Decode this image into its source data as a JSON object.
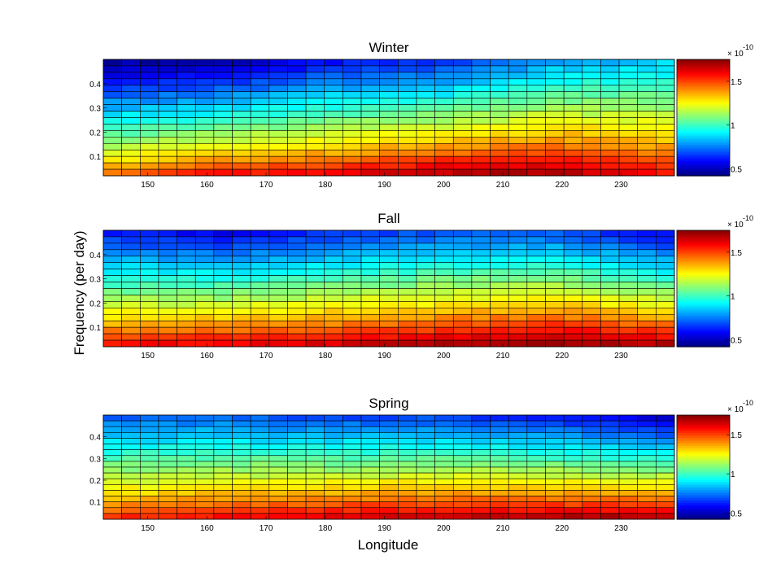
{
  "chart_data": [
    {
      "type": "heatmap",
      "title": "Winter",
      "x_ticks": [
        150,
        160,
        170,
        180,
        190,
        200,
        210,
        220,
        230
      ],
      "y_ticks": [
        0.1,
        0.2,
        0.3,
        0.4
      ],
      "xlim": [
        142.5,
        239
      ],
      "ylim": [
        0.02,
        0.5
      ],
      "n_cols": 31,
      "n_rows": 18,
      "colorbar": {
        "ticks": [
          0.5,
          1,
          1.5
        ],
        "multiplier": "× 10",
        "exponent": "-10",
        "clim": [
          0.42,
          1.75
        ]
      },
      "grid": true,
      "values_note": "",
      "profiles": {
        "longitudes": [
          143,
          162,
          180,
          200,
          218,
          239
        ],
        "low_frequency_values": [
          1.45,
          1.6,
          1.62,
          1.72,
          1.74,
          1.6
        ],
        "high_frequency_values": [
          0.45,
          0.45,
          0.58,
          0.62,
          0.78,
          0.85
        ]
      }
    },
    {
      "type": "heatmap",
      "title": "Fall",
      "x_ticks": [
        150,
        160,
        170,
        180,
        190,
        200,
        210,
        220,
        230
      ],
      "y_ticks": [
        0.1,
        0.2,
        0.3,
        0.4
      ],
      "xlim": [
        142.5,
        239
      ],
      "ylim": [
        0.02,
        0.5
      ],
      "n_cols": 31,
      "n_rows": 18,
      "colorbar": {
        "ticks": [
          0.5,
          1,
          1.5
        ],
        "multiplier": "× 10",
        "exponent": "-10",
        "clim": [
          0.42,
          1.75
        ]
      },
      "grid": true,
      "values_note": "",
      "profiles": {
        "longitudes": [
          143,
          162,
          180,
          200,
          218,
          239
        ],
        "low_frequency_values": [
          1.6,
          1.65,
          1.68,
          1.72,
          1.78,
          1.72
        ],
        "high_frequency_values": [
          0.6,
          0.55,
          0.62,
          0.68,
          0.68,
          0.55
        ]
      }
    },
    {
      "type": "heatmap",
      "title": "Spring",
      "x_ticks": [
        150,
        160,
        170,
        180,
        190,
        200,
        210,
        220,
        230
      ],
      "y_ticks": [
        0.1,
        0.2,
        0.3,
        0.4
      ],
      "xlim": [
        142.5,
        239
      ],
      "ylim": [
        0.02,
        0.5
      ],
      "n_cols": 31,
      "n_rows": 18,
      "colorbar": {
        "ticks": [
          0.5,
          1,
          1.5
        ],
        "multiplier": "× 10",
        "exponent": "-10",
        "clim": [
          0.42,
          1.75
        ]
      },
      "grid": true,
      "values_note": "",
      "profiles": {
        "longitudes": [
          143,
          162,
          180,
          200,
          218,
          239
        ],
        "low_frequency_values": [
          1.55,
          1.62,
          1.66,
          1.7,
          1.72,
          1.74
        ],
        "high_frequency_values": [
          0.7,
          0.7,
          0.66,
          0.66,
          0.6,
          0.5
        ]
      }
    }
  ],
  "labels": {
    "y_axis": "Frequency (per day)",
    "x_axis": "Longitude"
  }
}
